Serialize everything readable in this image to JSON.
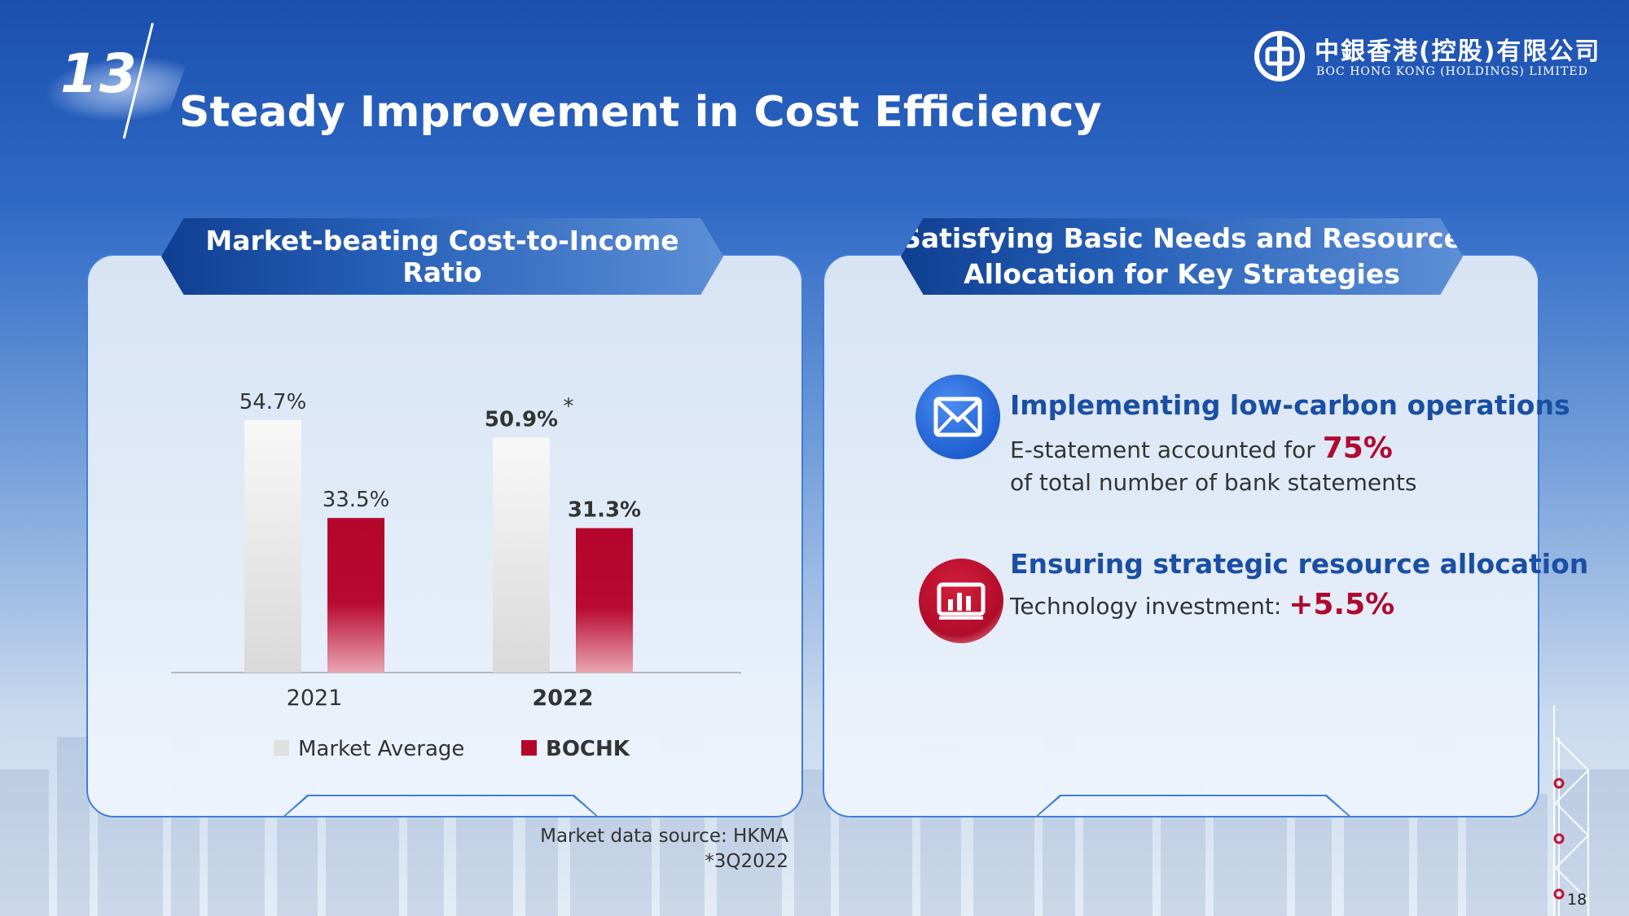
{
  "slide": {
    "section_number": "13",
    "title": "Steady Improvement in Cost Efficiency",
    "page_number": "18"
  },
  "logo": {
    "chinese": "中銀香港(控股)有限公司",
    "english": "BOC HONG KONG (HOLDINGS) LIMITED",
    "icon": "boc-emblem-icon"
  },
  "left_panel": {
    "header": "Market-beating Cost-to-Income Ratio",
    "source": "Market data source: HKMA",
    "footnote": "*3Q2022"
  },
  "chart_data": {
    "type": "bar",
    "categories": [
      "2021",
      "2022"
    ],
    "series": [
      {
        "name": "Market Average",
        "values": [
          54.7,
          50.9
        ],
        "labels": [
          "54.7%",
          "50.9%"
        ],
        "color": "#e3e3e3"
      },
      {
        "name": "BOCHK",
        "values": [
          33.5,
          31.3
        ],
        "labels": [
          "33.5%",
          "31.3%"
        ],
        "color": "#b4062b"
      }
    ],
    "annotation": "*",
    "ylim": [
      0,
      60
    ],
    "legend_position": "bottom",
    "grid": false
  },
  "right_panel": {
    "header_line1": "Satisfying Basic Needs and Resource",
    "header_line2": "Allocation for Key Strategies",
    "items": [
      {
        "icon": "envelope-icon",
        "title": "Implementing low-carbon operations",
        "text_before": "E-statement accounted for ",
        "highlight": "75%",
        "text_line2": "of total number of bank statements"
      },
      {
        "icon": "bar-chart-icon",
        "title": "Ensuring strategic resource allocation",
        "text_before": "Technology investment: ",
        "highlight": "+5.5%"
      }
    ]
  }
}
